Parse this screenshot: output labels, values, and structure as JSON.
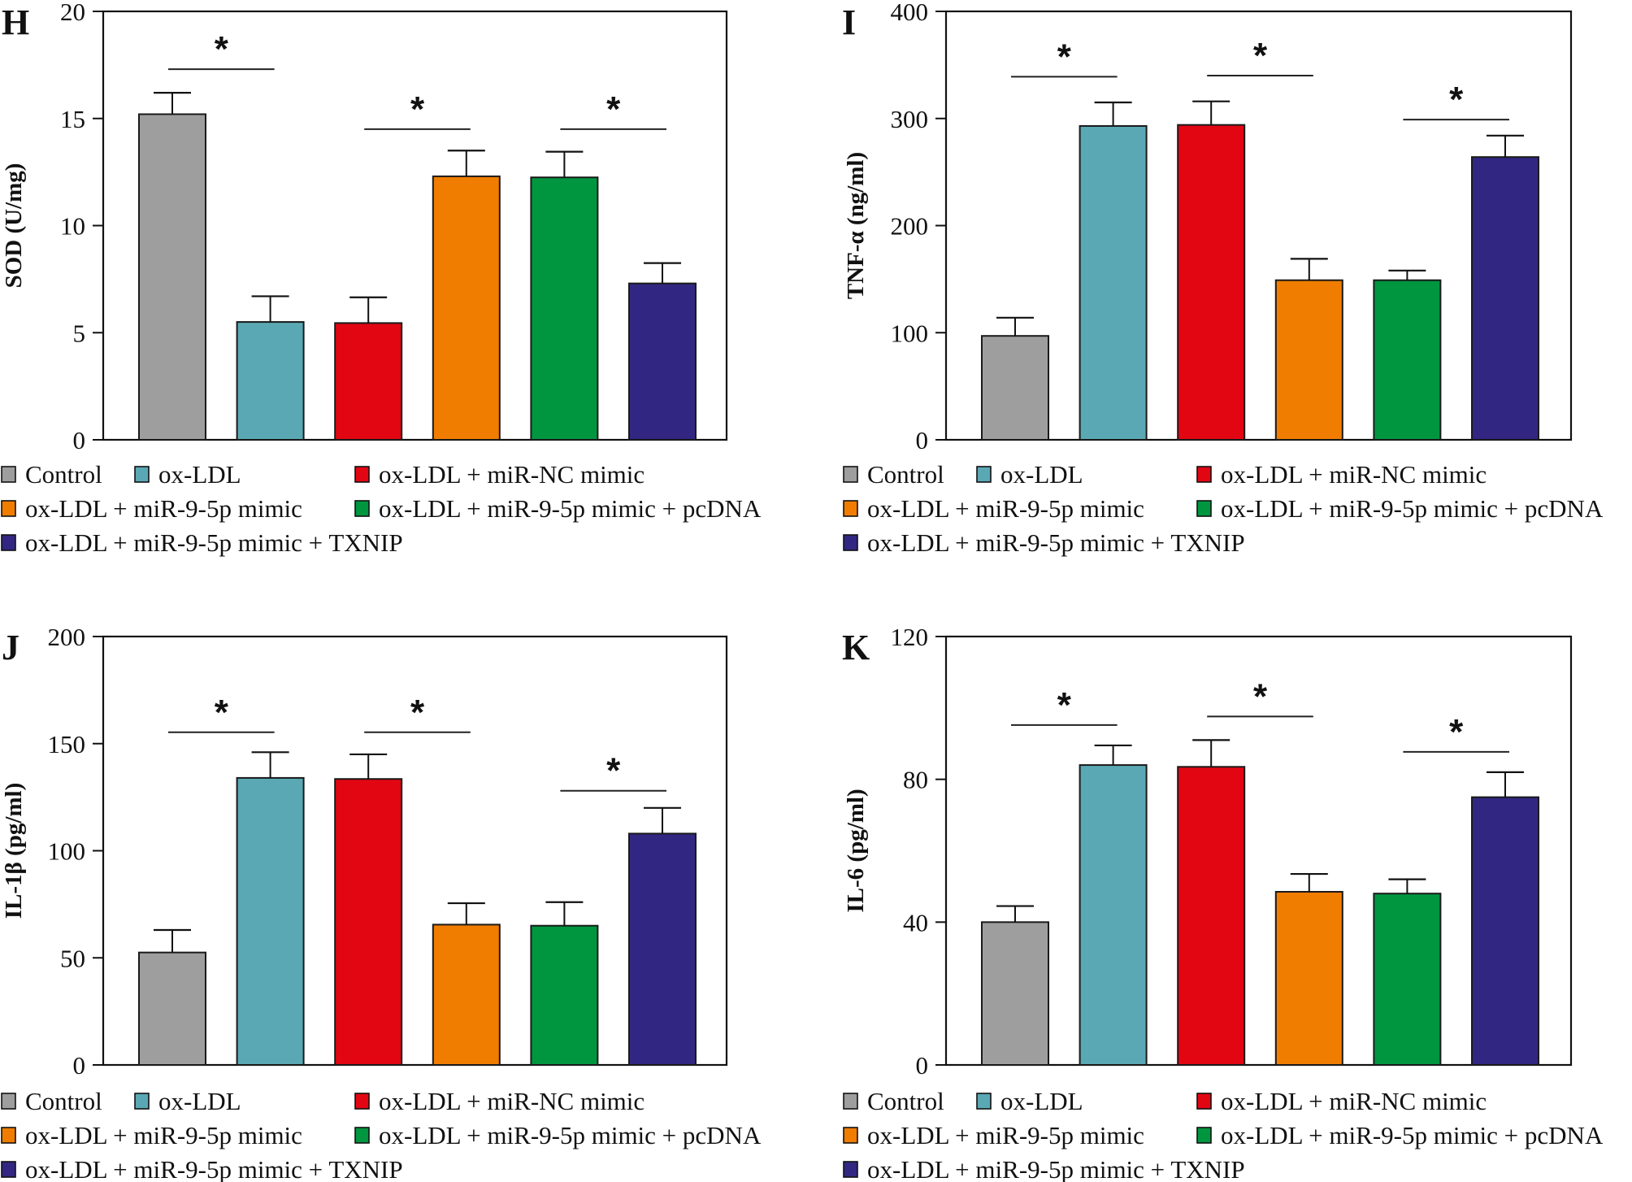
{
  "chart_data": [
    {
      "type": "bar",
      "panel": "H",
      "title": "",
      "xlabel": "",
      "ylabel": "SOD (U/mg)",
      "ylim": [
        0,
        20
      ],
      "yticks": [
        0,
        5,
        10,
        15,
        20
      ],
      "categories": [
        "Control",
        "ox-LDL",
        "ox-LDL + miR-NC mimic",
        "ox-LDL + miR-9-5p mimic",
        "ox-LDL + miR-9-5p mimic + pcDNA",
        "ox-LDL + miR-9-5p mimic + TXNIP"
      ],
      "values": [
        15.2,
        5.5,
        5.45,
        12.3,
        12.25,
        7.3
      ],
      "error_upper": [
        16.2,
        6.7,
        6.65,
        13.5,
        13.45,
        8.25
      ],
      "significance": [
        {
          "from": 0,
          "to": 1,
          "y": 17.3,
          "label": "*"
        },
        {
          "from": 2,
          "to": 3,
          "y": 14.5,
          "label": "*"
        },
        {
          "from": 4,
          "to": 5,
          "y": 14.5,
          "label": "*"
        }
      ],
      "legend": "bottom"
    },
    {
      "type": "bar",
      "panel": "I",
      "title": "",
      "xlabel": "",
      "ylabel": "TNF-α (ng/ml)",
      "ylim": [
        0,
        400
      ],
      "yticks": [
        0,
        100,
        200,
        300,
        400
      ],
      "categories": [
        "Control",
        "ox-LDL",
        "ox-LDL + miR-NC mimic",
        "ox-LDL + miR-9-5p mimic",
        "ox-LDL + miR-9-5p mimic + pcDNA",
        "ox-LDL + miR-9-5p mimic + TXNIP"
      ],
      "values": [
        97,
        293,
        294,
        149,
        149,
        264
      ],
      "error_upper": [
        114,
        315,
        316,
        169,
        158,
        284
      ],
      "significance": [
        {
          "from": 0,
          "to": 1,
          "y": 339,
          "label": "*"
        },
        {
          "from": 2,
          "to": 3,
          "y": 340,
          "label": "*"
        },
        {
          "from": 4,
          "to": 5,
          "y": 299,
          "label": "*"
        }
      ],
      "legend": "bottom"
    },
    {
      "type": "bar",
      "panel": "J",
      "title": "",
      "xlabel": "",
      "ylabel": "IL-1β (pg/ml)",
      "ylim": [
        0,
        200
      ],
      "yticks": [
        0,
        50,
        100,
        150,
        200
      ],
      "categories": [
        "Control",
        "ox-LDL",
        "ox-LDL + miR-NC mimic",
        "ox-LDL + miR-9-5p mimic",
        "ox-LDL + miR-9-5p mimic + pcDNA",
        "ox-LDL + miR-9-5p mimic + TXNIP"
      ],
      "values": [
        52.5,
        134,
        133.5,
        65.5,
        65,
        108
      ],
      "error_upper": [
        63,
        146,
        145,
        75.5,
        76,
        120
      ],
      "significance": [
        {
          "from": 0,
          "to": 1,
          "y": 155.3,
          "label": "*"
        },
        {
          "from": 2,
          "to": 3,
          "y": 155.3,
          "label": "*"
        },
        {
          "from": 4,
          "to": 5,
          "y": 128,
          "label": "*"
        }
      ],
      "legend": "bottom"
    },
    {
      "type": "bar",
      "panel": "K",
      "title": "",
      "xlabel": "",
      "ylabel": "IL-6 (pg/ml)",
      "ylim": [
        0,
        120
      ],
      "yticks": [
        0,
        40,
        80,
        120
      ],
      "categories": [
        "Control",
        "ox-LDL",
        "ox-LDL + miR-NC mimic",
        "ox-LDL + miR-9-5p mimic",
        "ox-LDL + miR-9-5p mimic + pcDNA",
        "ox-LDL + miR-9-5p mimic + TXNIP"
      ],
      "values": [
        40,
        84,
        83.5,
        48.5,
        48,
        75
      ],
      "error_upper": [
        44.5,
        89.5,
        91,
        53.5,
        52,
        82
      ],
      "significance": [
        {
          "from": 0,
          "to": 1,
          "y": 95.2,
          "label": "*"
        },
        {
          "from": 2,
          "to": 3,
          "y": 97.6,
          "label": "*"
        },
        {
          "from": 4,
          "to": 5,
          "y": 87.7,
          "label": "*"
        }
      ],
      "legend": "bottom"
    }
  ],
  "series_colors": [
    "#9e9e9e",
    "#5aa8b4",
    "#e20613",
    "#f07d00",
    "#009640",
    "#312782"
  ],
  "legend_labels": [
    "Control",
    "ox-LDL",
    "ox-LDL + miR-NC mimic",
    "ox-LDL + miR-9-5p mimic",
    "ox-LDL + miR-9-5p mimic + pcDNA",
    "ox-LDL + miR-9-5p mimic + TXNIP"
  ]
}
